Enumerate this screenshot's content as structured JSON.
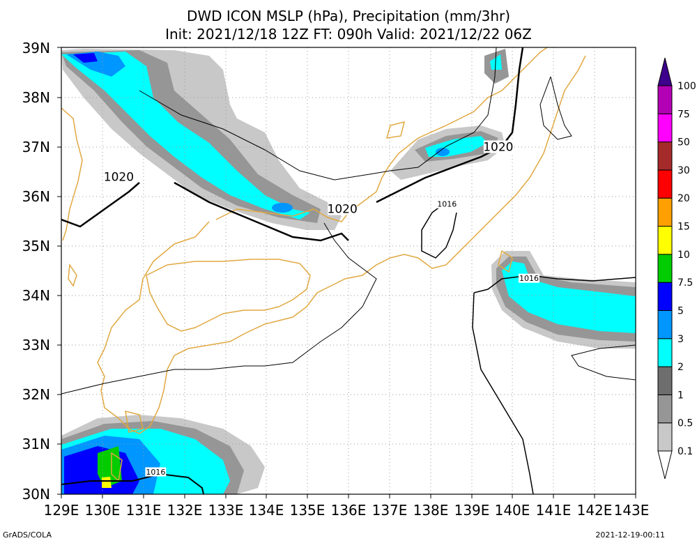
{
  "title": {
    "line1": "DWD ICON MSLP (hPa), Precipitation (mm/3hr)",
    "line2": "Init: 2021/12/18 12Z  FT: 090h  Valid: 2021/12/22 06Z"
  },
  "axes": {
    "lon_labels": [
      "129E",
      "130E",
      "131E",
      "132E",
      "133E",
      "134E",
      "135E",
      "136E",
      "137E",
      "138E",
      "139E",
      "140E",
      "141E",
      "142E",
      "143E"
    ],
    "lat_labels": [
      "30N",
      "31N",
      "32N",
      "33N",
      "34N",
      "35N",
      "36N",
      "37N",
      "38N",
      "39N"
    ]
  },
  "map": {
    "lon_range": [
      129,
      143
    ],
    "lat_range": [
      30,
      39
    ],
    "grid": "dotted",
    "isobar_labels": [
      {
        "text": "1020",
        "lon": 130.4,
        "lat": 36.4,
        "size": "large"
      },
      {
        "text": "1020",
        "lon": 135.85,
        "lat": 35.75,
        "size": "large"
      },
      {
        "text": "1020",
        "lon": 139.65,
        "lat": 37.0,
        "size": "large"
      },
      {
        "text": "1016",
        "lon": 138.4,
        "lat": 35.85,
        "size": "small"
      },
      {
        "text": "1016",
        "lon": 140.4,
        "lat": 34.35,
        "size": "small"
      },
      {
        "text": "1016",
        "lon": 131.3,
        "lat": 30.45,
        "size": "small"
      }
    ]
  },
  "colorbar": {
    "labels": [
      "0.1",
      "0.5",
      "1",
      "2",
      "3",
      "5",
      "7.5",
      "10",
      "15",
      "20",
      "30",
      "50",
      "75",
      "100"
    ],
    "colors": [
      "#c8c8c8",
      "#969696",
      "#6e6e6e",
      "#00ffff",
      "#0096ff",
      "#0000ff",
      "#00cc00",
      "#ffff00",
      "#ffa000",
      "#ff0000",
      "#a52a2a",
      "#ff00ff",
      "#b400b4",
      "#7800c8",
      "#3c008c"
    ]
  },
  "footer": {
    "left": "GrADS/COLA",
    "right": "2021-12-19-00:11"
  }
}
